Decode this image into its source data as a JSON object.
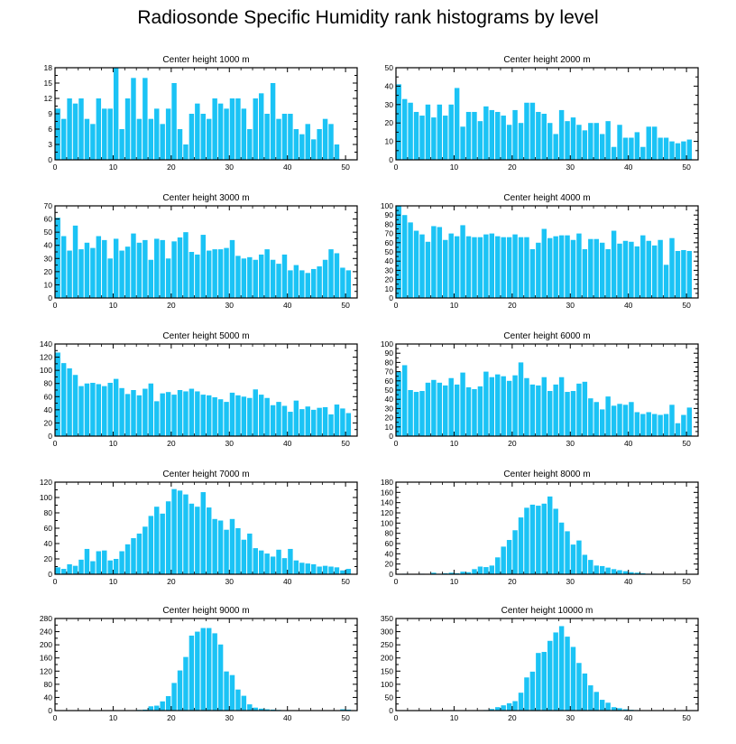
{
  "title": "Radiosonde Specific Humidity rank histograms by level",
  "bar_color": "#1BC3F5",
  "chart_data": [
    {
      "type": "bar",
      "title": "Center height 1000 m",
      "xlim": [
        0,
        52
      ],
      "ylim": [
        0,
        18
      ],
      "yticks": [
        0,
        3,
        6,
        9,
        12,
        15,
        18
      ],
      "xticks": [
        0,
        10,
        20,
        30,
        40,
        50
      ],
      "x": [
        0,
        1,
        2,
        3,
        4,
        5,
        6,
        7,
        8,
        9,
        10,
        11,
        12,
        13,
        14,
        15,
        16,
        17,
        18,
        19,
        20,
        21,
        22,
        23,
        24,
        25,
        26,
        27,
        28,
        29,
        30,
        31,
        32,
        33,
        34,
        35,
        36,
        37,
        38,
        39,
        40,
        41,
        42,
        43,
        44,
        45,
        46,
        47,
        48,
        49,
        50,
        51
      ],
      "values": [
        10,
        8,
        12,
        11,
        12,
        8,
        7,
        12,
        10,
        10,
        18,
        6,
        12,
        16,
        8,
        16,
        8,
        10,
        7,
        10,
        15,
        6,
        3,
        9,
        11,
        9,
        8,
        12,
        11,
        10,
        12,
        12,
        10,
        6,
        12,
        13,
        9,
        15,
        8,
        9,
        9,
        6,
        5,
        7,
        4,
        6,
        8,
        7,
        3,
        0,
        0,
        0
      ]
    },
    {
      "type": "bar",
      "title": "Center height 2000 m",
      "xlim": [
        0,
        52
      ],
      "ylim": [
        0,
        50
      ],
      "yticks": [
        0,
        10,
        20,
        30,
        40,
        50
      ],
      "xticks": [
        0,
        10,
        20,
        30,
        40,
        50
      ],
      "x": [
        0,
        1,
        2,
        3,
        4,
        5,
        6,
        7,
        8,
        9,
        10,
        11,
        12,
        13,
        14,
        15,
        16,
        17,
        18,
        19,
        20,
        21,
        22,
        23,
        24,
        25,
        26,
        27,
        28,
        29,
        30,
        31,
        32,
        33,
        34,
        35,
        36,
        37,
        38,
        39,
        40,
        41,
        42,
        43,
        44,
        45,
        46,
        47,
        48,
        49,
        50,
        51
      ],
      "values": [
        41,
        33,
        31,
        26,
        24,
        30,
        23,
        30,
        24,
        30,
        39,
        18,
        26,
        26,
        21,
        29,
        27,
        26,
        24,
        19,
        27,
        20,
        31,
        31,
        26,
        25,
        20,
        14,
        27,
        21,
        23,
        19,
        16,
        20,
        20,
        14,
        21,
        7,
        19,
        12,
        12,
        15,
        7,
        18,
        18,
        12,
        12,
        10,
        9,
        10,
        11,
        0
      ]
    },
    {
      "type": "bar",
      "title": "Center height 3000 m",
      "xlim": [
        0,
        52
      ],
      "ylim": [
        0,
        70
      ],
      "yticks": [
        0,
        10,
        20,
        30,
        40,
        50,
        60,
        70
      ],
      "xticks": [
        0,
        10,
        20,
        30,
        40,
        50
      ],
      "x": [
        0,
        1,
        2,
        3,
        4,
        5,
        6,
        7,
        8,
        9,
        10,
        11,
        12,
        13,
        14,
        15,
        16,
        17,
        18,
        19,
        20,
        21,
        22,
        23,
        24,
        25,
        26,
        27,
        28,
        29,
        30,
        31,
        32,
        33,
        34,
        35,
        36,
        37,
        38,
        39,
        40,
        41,
        42,
        43,
        44,
        45,
        46,
        47,
        48,
        49,
        50,
        51
      ],
      "values": [
        61,
        47,
        36,
        55,
        37,
        42,
        38,
        47,
        44,
        30,
        45,
        36,
        39,
        49,
        42,
        44,
        29,
        45,
        44,
        30,
        43,
        46,
        50,
        35,
        33,
        48,
        36,
        37,
        37,
        38,
        44,
        32,
        30,
        31,
        29,
        33,
        37,
        29,
        26,
        33,
        21,
        25,
        21,
        19,
        22,
        24,
        29,
        37,
        34,
        23,
        21,
        0
      ]
    },
    {
      "type": "bar",
      "title": "Center height 4000 m",
      "xlim": [
        0,
        52
      ],
      "ylim": [
        0,
        100
      ],
      "yticks": [
        0,
        10,
        20,
        30,
        40,
        50,
        60,
        70,
        80,
        90,
        100
      ],
      "xticks": [
        0,
        10,
        20,
        30,
        40,
        50
      ],
      "x": [
        0,
        1,
        2,
        3,
        4,
        5,
        6,
        7,
        8,
        9,
        10,
        11,
        12,
        13,
        14,
        15,
        16,
        17,
        18,
        19,
        20,
        21,
        22,
        23,
        24,
        25,
        26,
        27,
        28,
        29,
        30,
        31,
        32,
        33,
        34,
        35,
        36,
        37,
        38,
        39,
        40,
        41,
        42,
        43,
        44,
        45,
        46,
        47,
        48,
        49,
        50,
        51
      ],
      "values": [
        100,
        90,
        82,
        73,
        69,
        61,
        78,
        77,
        63,
        70,
        67,
        79,
        67,
        66,
        66,
        69,
        70,
        67,
        66,
        66,
        69,
        66,
        66,
        53,
        60,
        75,
        65,
        67,
        68,
        68,
        63,
        70,
        53,
        64,
        64,
        60,
        53,
        73,
        59,
        62,
        61,
        56,
        68,
        62,
        57,
        63,
        36,
        65,
        51,
        52,
        51,
        0
      ]
    },
    {
      "type": "bar",
      "title": "Center height 5000 m",
      "xlim": [
        0,
        52
      ],
      "ylim": [
        0,
        140
      ],
      "yticks": [
        0,
        20,
        40,
        60,
        80,
        100,
        120,
        140
      ],
      "xticks": [
        0,
        10,
        20,
        30,
        40,
        50
      ],
      "x": [
        0,
        1,
        2,
        3,
        4,
        5,
        6,
        7,
        8,
        9,
        10,
        11,
        12,
        13,
        14,
        15,
        16,
        17,
        18,
        19,
        20,
        21,
        22,
        23,
        24,
        25,
        26,
        27,
        28,
        29,
        30,
        31,
        32,
        33,
        34,
        35,
        36,
        37,
        38,
        39,
        40,
        41,
        42,
        43,
        44,
        45,
        46,
        47,
        48,
        49,
        50,
        51
      ],
      "values": [
        127,
        111,
        103,
        93,
        76,
        80,
        81,
        79,
        76,
        81,
        87,
        73,
        64,
        70,
        62,
        72,
        80,
        53,
        65,
        67,
        63,
        70,
        68,
        72,
        68,
        63,
        62,
        59,
        56,
        52,
        66,
        62,
        60,
        58,
        71,
        63,
        58,
        47,
        52,
        46,
        37,
        54,
        41,
        45,
        40,
        43,
        44,
        33,
        48,
        42,
        35,
        0
      ]
    },
    {
      "type": "bar",
      "title": "Center height 6000 m",
      "xlim": [
        0,
        52
      ],
      "ylim": [
        0,
        100
      ],
      "yticks": [
        0,
        10,
        20,
        30,
        40,
        50,
        60,
        70,
        80,
        90,
        100
      ],
      "xticks": [
        0,
        10,
        20,
        30,
        40,
        50
      ],
      "x": [
        0,
        1,
        2,
        3,
        4,
        5,
        6,
        7,
        8,
        9,
        10,
        11,
        12,
        13,
        14,
        15,
        16,
        17,
        18,
        19,
        20,
        21,
        22,
        23,
        24,
        25,
        26,
        27,
        28,
        29,
        30,
        31,
        32,
        33,
        34,
        35,
        36,
        37,
        38,
        39,
        40,
        41,
        42,
        43,
        44,
        45,
        46,
        47,
        48,
        49,
        50,
        51
      ],
      "values": [
        70,
        77,
        50,
        48,
        49,
        58,
        61,
        58,
        55,
        63,
        56,
        69,
        53,
        51,
        54,
        70,
        64,
        67,
        65,
        60,
        66,
        80,
        63,
        56,
        55,
        64,
        49,
        56,
        64,
        48,
        49,
        57,
        59,
        41,
        37,
        29,
        43,
        33,
        35,
        34,
        37,
        26,
        24,
        26,
        24,
        23,
        24,
        34,
        14,
        23,
        31,
        0
      ]
    },
    {
      "type": "bar",
      "title": "Center height 7000 m",
      "xlim": [
        0,
        52
      ],
      "ylim": [
        0,
        120
      ],
      "yticks": [
        0,
        20,
        40,
        60,
        80,
        100,
        120
      ],
      "xticks": [
        0,
        10,
        20,
        30,
        40,
        50
      ],
      "x": [
        0,
        1,
        2,
        3,
        4,
        5,
        6,
        7,
        8,
        9,
        10,
        11,
        12,
        13,
        14,
        15,
        16,
        17,
        18,
        19,
        20,
        21,
        22,
        23,
        24,
        25,
        26,
        27,
        28,
        29,
        30,
        31,
        32,
        33,
        34,
        35,
        36,
        37,
        38,
        39,
        40,
        41,
        42,
        43,
        44,
        45,
        46,
        47,
        48,
        49,
        50,
        51
      ],
      "values": [
        9,
        7,
        13,
        11,
        19,
        33,
        17,
        30,
        31,
        18,
        20,
        30,
        39,
        47,
        53,
        62,
        76,
        88,
        79,
        95,
        111,
        109,
        104,
        92,
        88,
        107,
        87,
        72,
        70,
        58,
        72,
        60,
        45,
        53,
        34,
        31,
        27,
        23,
        32,
        21,
        33,
        18,
        15,
        14,
        13,
        10,
        11,
        10,
        9,
        5,
        7,
        0
      ]
    },
    {
      "type": "bar",
      "title": "Center height 8000 m",
      "xlim": [
        0,
        52
      ],
      "ylim": [
        0,
        180
      ],
      "yticks": [
        0,
        20,
        40,
        60,
        80,
        100,
        120,
        140,
        160,
        180
      ],
      "xticks": [
        0,
        10,
        20,
        30,
        40,
        50
      ],
      "x": [
        0,
        1,
        2,
        3,
        4,
        5,
        6,
        7,
        8,
        9,
        10,
        11,
        12,
        13,
        14,
        15,
        16,
        17,
        18,
        19,
        20,
        21,
        22,
        23,
        24,
        25,
        26,
        27,
        28,
        29,
        30,
        31,
        32,
        33,
        34,
        35,
        36,
        37,
        38,
        39,
        40,
        41,
        42,
        43,
        44,
        45,
        46,
        47,
        48,
        49,
        50,
        51
      ],
      "values": [
        0,
        1,
        0,
        0,
        1,
        0,
        3,
        1,
        2,
        3,
        2,
        5,
        4,
        10,
        15,
        14,
        17,
        33,
        54,
        67,
        86,
        111,
        130,
        136,
        134,
        138,
        152,
        128,
        101,
        84,
        58,
        66,
        38,
        28,
        17,
        16,
        13,
        10,
        8,
        6,
        4,
        3,
        2,
        1,
        1,
        0,
        0,
        0,
        0,
        0,
        0,
        0
      ]
    },
    {
      "type": "bar",
      "title": "Center height 9000 m",
      "xlim": [
        0,
        52
      ],
      "ylim": [
        0,
        280
      ],
      "yticks": [
        0,
        40,
        80,
        120,
        160,
        200,
        240,
        280
      ],
      "xticks": [
        0,
        10,
        20,
        30,
        40,
        50
      ],
      "x": [
        0,
        1,
        2,
        3,
        4,
        5,
        6,
        7,
        8,
        9,
        10,
        11,
        12,
        13,
        14,
        15,
        16,
        17,
        18,
        19,
        20,
        21,
        22,
        23,
        24,
        25,
        26,
        27,
        28,
        29,
        30,
        31,
        32,
        33,
        34,
        35,
        36,
        37,
        38,
        39,
        40,
        41,
        42,
        43,
        44,
        45,
        46,
        47,
        48,
        49,
        50,
        51
      ],
      "values": [
        0,
        0,
        0,
        0,
        0,
        0,
        0,
        0,
        0,
        0,
        1,
        0,
        0,
        1,
        2,
        3,
        13,
        15,
        28,
        44,
        84,
        122,
        163,
        228,
        240,
        251,
        251,
        235,
        201,
        119,
        108,
        64,
        45,
        19,
        9,
        6,
        4,
        3,
        2,
        1,
        1,
        0,
        0,
        0,
        0,
        0,
        0,
        0,
        0,
        4,
        3,
        0
      ]
    },
    {
      "type": "bar",
      "title": "Center height 10000 m",
      "xlim": [
        0,
        52
      ],
      "ylim": [
        0,
        350
      ],
      "yticks": [
        0,
        50,
        100,
        150,
        200,
        250,
        300,
        350
      ],
      "xticks": [
        0,
        10,
        20,
        30,
        40,
        50
      ],
      "x": [
        0,
        1,
        2,
        3,
        4,
        5,
        6,
        7,
        8,
        9,
        10,
        11,
        12,
        13,
        14,
        15,
        16,
        17,
        18,
        19,
        20,
        21,
        22,
        23,
        24,
        25,
        26,
        27,
        28,
        29,
        30,
        31,
        32,
        33,
        34,
        35,
        36,
        37,
        38,
        39,
        40,
        41,
        42,
        43,
        44,
        45,
        46,
        47,
        48,
        49,
        50,
        51
      ],
      "values": [
        0,
        0,
        0,
        0,
        0,
        0,
        0,
        0,
        0,
        0,
        0,
        0,
        0,
        0,
        1,
        2,
        6,
        13,
        20,
        28,
        36,
        68,
        126,
        148,
        219,
        223,
        265,
        297,
        321,
        281,
        242,
        181,
        141,
        96,
        71,
        41,
        30,
        13,
        9,
        5,
        3,
        2,
        1,
        0,
        0,
        0,
        0,
        0,
        0,
        0,
        0,
        0
      ]
    }
  ]
}
